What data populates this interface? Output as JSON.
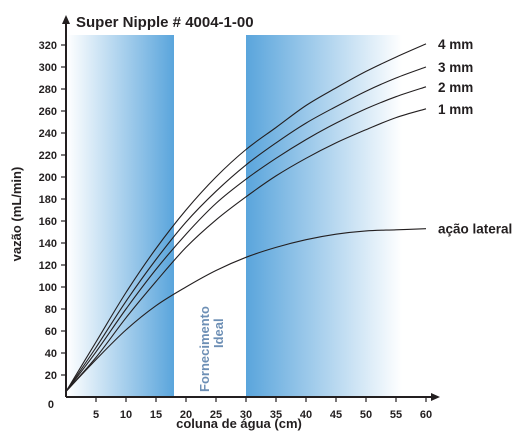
{
  "chart_data": {
    "type": "line",
    "title": "Super Nipple # 4004-1-00",
    "xlabel": "coluna de água (cm)",
    "ylabel": "vazão (mL/min)",
    "xlim": [
      0,
      63
    ],
    "ylim": [
      0,
      335
    ],
    "x_ticks": [
      "5",
      "10",
      "15",
      "20",
      "25",
      "30",
      "35",
      "40",
      "45",
      "50",
      "55",
      "60"
    ],
    "y_ticks": [
      "0",
      "20",
      "40",
      "60",
      "80",
      "100",
      "120",
      "140",
      "160",
      "180",
      "200",
      "220",
      "240",
      "260",
      "280",
      "300",
      "320"
    ],
    "origin_label": "0",
    "grid": false,
    "legend": "none; series labeled at line ends",
    "band": {
      "label_line1": "Fornecimento",
      "label_line2": "Ideal",
      "x_range": [
        19,
        31.5
      ]
    },
    "colors": {
      "line": "#231f20",
      "band_dark": "#5aa5dc",
      "band_light": "#ffffff",
      "band_label": "#6d8fb5"
    },
    "series": [
      {
        "name": "4 mm",
        "points": [
          [
            0,
            5
          ],
          [
            5,
            50
          ],
          [
            10,
            95
          ],
          [
            15,
            135
          ],
          [
            20,
            170
          ],
          [
            25,
            200
          ],
          [
            30,
            225
          ],
          [
            35,
            245
          ],
          [
            40,
            265
          ],
          [
            45,
            281
          ],
          [
            50,
            296
          ],
          [
            55,
            309
          ],
          [
            60,
            321
          ]
        ]
      },
      {
        "name": "3 mm",
        "points": [
          [
            0,
            5
          ],
          [
            5,
            45
          ],
          [
            10,
            87
          ],
          [
            15,
            125
          ],
          [
            20,
            159
          ],
          [
            25,
            187
          ],
          [
            30,
            211
          ],
          [
            35,
            231
          ],
          [
            40,
            249
          ],
          [
            45,
            264
          ],
          [
            50,
            278
          ],
          [
            55,
            290
          ],
          [
            60,
            300
          ]
        ]
      },
      {
        "name": "2 mm",
        "points": [
          [
            0,
            5
          ],
          [
            5,
            41
          ],
          [
            10,
            80
          ],
          [
            15,
            116
          ],
          [
            20,
            148
          ],
          [
            25,
            176
          ],
          [
            30,
            198
          ],
          [
            35,
            217
          ],
          [
            40,
            234
          ],
          [
            45,
            249
          ],
          [
            50,
            262
          ],
          [
            55,
            273
          ],
          [
            60,
            282
          ]
        ]
      },
      {
        "name": "1 mm",
        "points": [
          [
            0,
            5
          ],
          [
            5,
            36
          ],
          [
            10,
            72
          ],
          [
            15,
            105
          ],
          [
            20,
            136
          ],
          [
            25,
            161
          ],
          [
            30,
            182
          ],
          [
            35,
            201
          ],
          [
            40,
            217
          ],
          [
            45,
            231
          ],
          [
            50,
            243
          ],
          [
            55,
            254
          ],
          [
            60,
            262
          ]
        ]
      },
      {
        "name": "ação lateral",
        "points": [
          [
            0,
            5
          ],
          [
            5,
            34
          ],
          [
            10,
            61
          ],
          [
            15,
            83
          ],
          [
            20,
            100
          ],
          [
            25,
            115
          ],
          [
            30,
            127
          ],
          [
            35,
            136
          ],
          [
            40,
            143
          ],
          [
            45,
            148
          ],
          [
            50,
            151
          ],
          [
            55,
            152
          ],
          [
            60,
            153
          ]
        ]
      }
    ]
  }
}
